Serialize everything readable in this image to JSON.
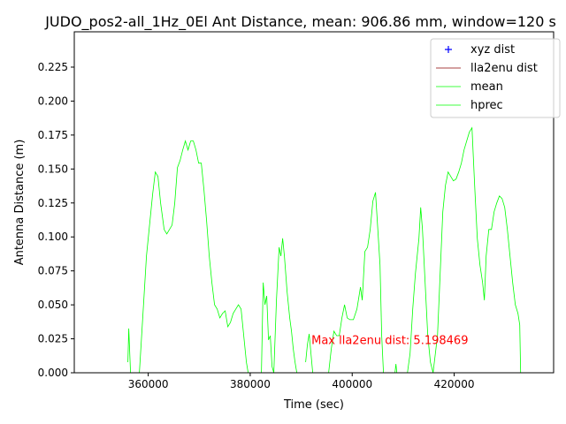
{
  "chart_data": {
    "type": "line",
    "title": "JUDO_pos2-all_1Hz_0El Ant Distance, mean: 906.86 mm, window=120 s",
    "x_label": "Time (sec)",
    "y_label": "Antenna Distance (m)",
    "annotation": "Max lla2enu dist: 5.198469",
    "annotation_color": "#ff0000",
    "annotation_x": 392000,
    "annotation_y": 0.021,
    "xlim": [
      345500,
      439500
    ],
    "ylim": [
      0,
      0.251
    ],
    "xticks": [
      360000,
      380000,
      400000,
      420000
    ],
    "yticks": [
      {
        "value": 0,
        "label": "0.000"
      },
      {
        "value": 0.025,
        "label": "0.025"
      },
      {
        "value": 0.05,
        "label": "0.050"
      },
      {
        "value": 0.075,
        "label": "0.075"
      },
      {
        "value": 0.1,
        "label": "0.100"
      },
      {
        "value": 0.125,
        "label": "0.125"
      },
      {
        "value": 0.15,
        "label": "0.150"
      },
      {
        "value": 0.175,
        "label": "0.175"
      },
      {
        "value": 0.2,
        "label": "0.200"
      },
      {
        "value": 0.225,
        "label": "0.225"
      }
    ],
    "legend_position": "upper right",
    "x": [
      356010,
      356184,
      356531,
      null,
      358265,
      359133,
      359653,
      360347,
      360867,
      361388,
      361908,
      362428,
      363122,
      363643,
      364163,
      364683,
      365204,
      365724,
      366245,
      366765,
      367285,
      367806,
      368326,
      368846,
      369367,
      369887,
      370408,
      370928,
      371448,
      371969,
      372489,
      373010,
      373530,
      374050,
      374571,
      375091,
      375611,
      376132,
      376652,
      377173,
      377693,
      378213,
      378734,
      379254,
      379601,
      null,
      382203,
      382550,
      382897,
      383244,
      383591,
      383937,
      384284,
      384631,
      385152,
      385672,
      386019,
      386366,
      386713,
      387233,
      387754,
      388100,
      388447,
      388794,
      389141,
      null,
      390875,
      391222,
      391569,
      391916,
      392263,
      null,
      395385,
      395906,
      396427,
      396947,
      397467,
      397988,
      398508,
      399029,
      399549,
      400243,
      400937,
      401630,
      401977,
      402498,
      403018,
      403538,
      404059,
      404579,
      404926,
      405447,
      405793,
      406140,
      null,
      408395,
      408569,
      408742,
      null,
      410824,
      411344,
      411865,
      412385,
      413079,
      413426,
      413773,
      414293,
      414813,
      415334,
      415854,
      416721,
      417242,
      417762,
      418283,
      418803,
      419323,
      419844,
      420364,
      420884,
      421405,
      421925,
      422446,
      422966,
      423486,
      424007,
      424527,
      425048,
      425568,
      425915,
      426262,
      426782,
      427302,
      427823,
      428343,
      428864,
      429384,
      429904,
      430425,
      430945,
      431466,
      431986,
      432506,
      432853,
      433027
    ],
    "series": [
      {
        "name": "xyz dist",
        "color": "#0000ff",
        "marker": "+"
      },
      {
        "name": "lla2enu dist",
        "color": "#8b0000"
      },
      {
        "name": "mean",
        "color": "#00ff00"
      },
      {
        "name": "hprec",
        "color": "#00ff00",
        "values": [
          0.0078,
          0.0326,
          0,
          null,
          0,
          0.0534,
          0.0859,
          0.112,
          0.1315,
          0.1478,
          0.1445,
          0.125,
          0.1055,
          0.1022,
          0.1055,
          0.1087,
          0.125,
          0.151,
          0.1562,
          0.164,
          0.1706,
          0.164,
          0.1706,
          0.1706,
          0.164,
          0.1543,
          0.1543,
          0.1348,
          0.112,
          0.0859,
          0.0664,
          0.0501,
          0.0469,
          0.0404,
          0.0436,
          0.0456,
          0.0339,
          0.0371,
          0.0436,
          0.0469,
          0.0501,
          0.0469,
          0.0273,
          0.0078,
          0,
          null,
          0,
          0.0664,
          0.0501,
          0.0566,
          0.0241,
          0.0273,
          0.0046,
          0,
          0.0534,
          0.0924,
          0.0859,
          0.099,
          0.0859,
          0.0599,
          0.0404,
          0.0306,
          0.0176,
          0.0078,
          0,
          null,
          0.0078,
          0.0208,
          0.0286,
          0.0143,
          0,
          null,
          0,
          0.0176,
          0.0306,
          0.0273,
          0.0273,
          0.0404,
          0.0501,
          0.0404,
          0.0391,
          0.0391,
          0.0469,
          0.0631,
          0.0534,
          0.0892,
          0.0924,
          0.1055,
          0.1263,
          0.1328,
          0.112,
          0.0794,
          0.0273,
          0,
          null,
          0,
          0.0065,
          0,
          null,
          0,
          0.0143,
          0.0469,
          0.0729,
          0.099,
          0.1217,
          0.1055,
          0.0664,
          0.0273,
          0.0078,
          0,
          0.0273,
          0.0729,
          0.1185,
          0.138,
          0.1478,
          0.1445,
          0.1413,
          0.1426,
          0.1478,
          0.1543,
          0.164,
          0.1706,
          0.1771,
          0.1803,
          0.138,
          0.099,
          0.0794,
          0.0664,
          0.0534,
          0.0859,
          0.1055,
          0.1055,
          0.1185,
          0.125,
          0.1302,
          0.1282,
          0.1217,
          0.1055,
          0.0859,
          0.0664,
          0.0501,
          0.0436,
          0.0352,
          0
        ]
      }
    ]
  }
}
